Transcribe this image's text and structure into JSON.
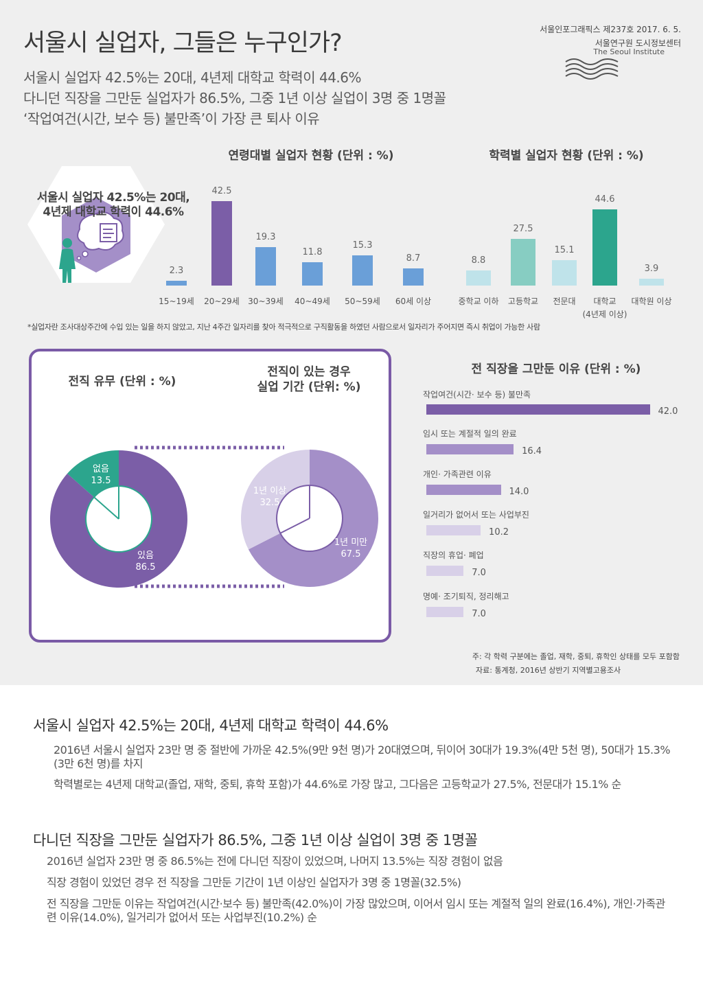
{
  "header": {
    "title": "서울시 실업자, 그들은 누구인가?",
    "subtitles": [
      "서울시 실업자 42.5%는 20대, 4년제 대학교 학력이 44.6%",
      "다니던 직장을 그만둔 실업자가 86.5%, 그중 1년 이상 실업이 3명 중 1명꼴",
      "‘작업여건(시간, 보수 등) 불만족’이 가장 큰 퇴사 이유"
    ],
    "issue": "서울인포그래픽스 제237호 2017. 6. 5.",
    "institute_kr": "서울연구원 도시정보센터",
    "institute_en": "The Seoul Institute"
  },
  "hex_text": [
    "서울시 실업자 42.5%는 20대,",
    "4년제 대학교 학력이 44.6%"
  ],
  "colors": {
    "purple": "#7b5ea7",
    "blue": "#6a9fd8",
    "teal": "#2ca58d",
    "mint": "#87cdc2",
    "lightblue": "#bfe3ea",
    "lavender": "#a48fc8",
    "pale": "#d8d0e8"
  },
  "footnote": "*실업자란 조사대상주간에 수입 있는 일을 하지 않았고, 지난 4주간 일자리를 찾아 적극적으로 구직활동을 하였던 사람으로서 일자리가 주어지면 즉시 취업이 가능한 사람",
  "chart_data": [
    {
      "type": "bar",
      "title": "연령대별 실업자 현황 (단위 : %)",
      "categories": [
        "15~19세",
        "20~29세",
        "30~39세",
        "40~49세",
        "50~59세",
        "60세 이상"
      ],
      "values": [
        2.3,
        42.5,
        19.3,
        11.8,
        15.3,
        8.7
      ]
    },
    {
      "type": "bar",
      "title": "학력별 실업자 현황 (단위 : %)",
      "categories": [
        "중학교 이하",
        "고등학교",
        "전문대",
        "대학교",
        "대학원 이상"
      ],
      "category_note": "(4년제 이상)",
      "values": [
        8.8,
        27.5,
        15.1,
        44.6,
        3.9
      ]
    },
    {
      "type": "pie",
      "title": "전직 유무 (단위 : %)",
      "slices": [
        {
          "label": "있음",
          "value": 86.5
        },
        {
          "label": "없음",
          "value": 13.5
        }
      ]
    },
    {
      "type": "pie",
      "title_lines": [
        "전직이 있는 경우",
        "실업 기간 (단위: %)"
      ],
      "slices": [
        {
          "label": "1년 미만",
          "value": 67.5
        },
        {
          "label": "1년 이상",
          "value": 32.5
        }
      ]
    },
    {
      "type": "bar",
      "title": "전 직장을 그만둔 이유 (단위 : %)",
      "orientation": "horizontal",
      "categories": [
        "작업여건(시간· 보수 등) 불만족",
        "임시 또는 계절적 일의 완료",
        "개인· 가족관련 이유",
        "일거리가 없어서 또는 사업부진",
        "직장의 휴업· 폐업",
        "명예· 조기퇴직, 정리해고"
      ],
      "values": [
        42.0,
        16.4,
        14.0,
        10.2,
        7.0,
        7.0
      ]
    }
  ],
  "notes": [
    "주: 각 학력 구분에는 졸업, 재학, 중퇴, 휴학인 상태를 모두 포함함",
    "자료: 통계청, 2016년 상반기 지역별고용조사"
  ],
  "sections": [
    {
      "heading": "서울시 실업자 42.5%는 20대, 4년제 대학교 학력이 44.6%",
      "paragraphs": [
        "2016년 서울시 실업자 23만 명 중 절반에 가까운 42.5%(9만 9천 명)가 20대였으며, 뒤이어 30대가 19.3%(4만 5천 명), 50대가 15.3%(3만 6천 명)를 차지",
        "학력별로는 4년제 대학교(졸업, 재학, 중퇴, 휴학 포함)가 44.6%로 가장 많고, 그다음은 고등학교가 27.5%, 전문대가 15.1% 순"
      ]
    },
    {
      "heading": "다니던 직장을 그만둔 실업자가 86.5%, 그중 1년 이상 실업이 3명 중 1명꼴",
      "paragraphs": [
        "2016년 실업자 23만 명 중 86.5%는 전에 다니던 직장이 있었으며, 나머지 13.5%는 직장 경험이 없음",
        "직장 경험이 있었던 경우 전 직장을 그만둔 기간이 1년 이상인 실업자가 3명 중 1명꼴(32.5%)",
        "전 직장을 그만둔 이유는 작업여건(시간·보수 등) 불만족(42.0%)이 가장 많았으며, 이어서 임시 또는 계절적 일의 완료(16.4%), 개인·가족관련 이유(14.0%), 일거리가 없어서 또는 사업부진(10.2%) 순"
      ]
    }
  ]
}
